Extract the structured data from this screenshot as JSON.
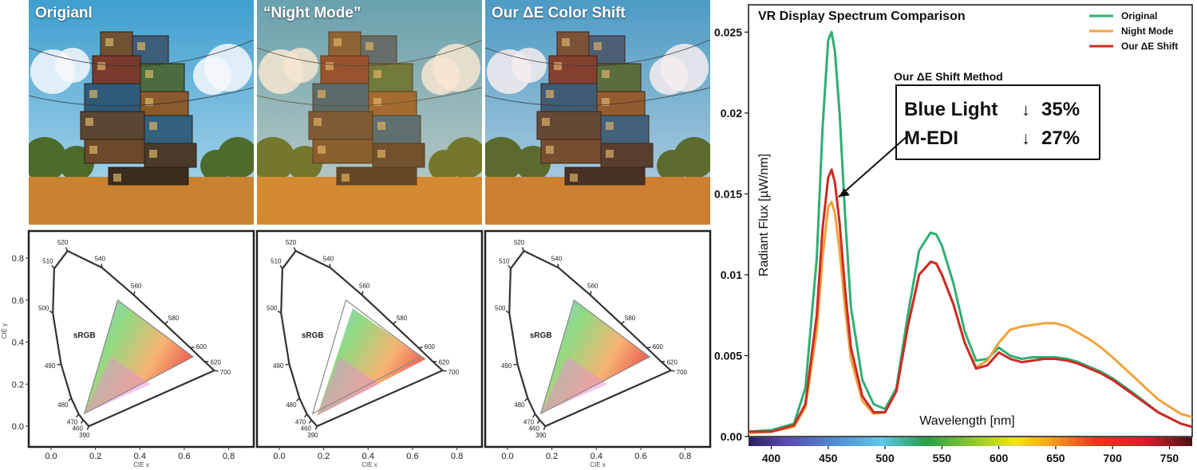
{
  "panels": [
    {
      "label": "Origianl",
      "variant": "original"
    },
    {
      "label": "“Night Mode”",
      "variant": "night"
    },
    {
      "label": "Our ΔE Color Shift",
      "variant": "shift"
    }
  ],
  "cie": {
    "xlabel": "CIE x",
    "ylabel": "CIE y",
    "x_ticks": [
      "0.0",
      "0.2",
      "0.4",
      "0.6",
      "0.8"
    ],
    "y_ticks": [
      "0.0",
      "0.2",
      "0.4",
      "0.6",
      "0.8"
    ],
    "gamut_label": "sRGB",
    "wavelength_labels": [
      "390",
      "460",
      "470",
      "480",
      "490",
      "500",
      "510",
      "520",
      "540",
      "560",
      "580",
      "600",
      "620",
      "700"
    ]
  },
  "chart_data": [
    {
      "type": "scatter",
      "title": "",
      "xlabel": "CIE x",
      "ylabel": "CIE y",
      "xlim": [
        -0.05,
        0.85
      ],
      "ylim": [
        -0.05,
        0.85
      ],
      "gamut": {
        "name": "sRGB",
        "red": [
          0.64,
          0.33
        ],
        "green": [
          0.3,
          0.6
        ],
        "blue": [
          0.15,
          0.06
        ]
      },
      "spectral_locus": [
        {
          "nm": "390",
          "x": 0.17,
          "y": 0.0
        },
        {
          "nm": "460",
          "x": 0.144,
          "y": 0.03
        },
        {
          "nm": "470",
          "x": 0.124,
          "y": 0.058
        },
        {
          "nm": "480",
          "x": 0.091,
          "y": 0.133
        },
        {
          "nm": "490",
          "x": 0.045,
          "y": 0.295
        },
        {
          "nm": "500",
          "x": 0.008,
          "y": 0.538
        },
        {
          "nm": "510",
          "x": 0.014,
          "y": 0.75
        },
        {
          "nm": "520",
          "x": 0.074,
          "y": 0.834
        },
        {
          "nm": "540",
          "x": 0.23,
          "y": 0.754
        },
        {
          "nm": "560",
          "x": 0.373,
          "y": 0.624
        },
        {
          "nm": "580",
          "x": 0.512,
          "y": 0.487
        },
        {
          "nm": "600",
          "x": 0.627,
          "y": 0.373
        },
        {
          "nm": "620",
          "x": 0.691,
          "y": 0.308
        },
        {
          "nm": "700",
          "x": 0.735,
          "y": 0.265
        }
      ]
    },
    {
      "type": "line",
      "title": "VR Display Spectrum Comparison",
      "xlabel": "Wavelength [nm]",
      "ylabel": "Radiant Flux [µW/nm]",
      "xlim": [
        380,
        770
      ],
      "ylim": [
        0,
        0.026
      ],
      "x_ticks": [
        400,
        450,
        500,
        550,
        600,
        650,
        700,
        750
      ],
      "y_ticks": [
        0.0,
        0.005,
        0.01,
        0.015,
        0.02,
        0.025
      ],
      "y_tick_labels": [
        "0.00",
        "0.005",
        "0.01",
        "0.015",
        "0.02",
        "0.025"
      ],
      "legend_position": "top-right",
      "x": [
        380,
        400,
        420,
        430,
        440,
        445,
        450,
        453,
        456,
        460,
        465,
        470,
        480,
        490,
        500,
        510,
        520,
        530,
        540,
        545,
        550,
        560,
        570,
        580,
        590,
        600,
        610,
        620,
        630,
        640,
        650,
        660,
        670,
        680,
        690,
        700,
        720,
        740,
        760,
        770
      ],
      "series": [
        {
          "name": "Original",
          "color": "#2fae73",
          "values": [
            0.0003,
            0.0004,
            0.0008,
            0.003,
            0.011,
            0.019,
            0.0245,
            0.025,
            0.0238,
            0.02,
            0.0135,
            0.008,
            0.0035,
            0.002,
            0.0017,
            0.003,
            0.0075,
            0.0115,
            0.0126,
            0.0125,
            0.0118,
            0.0095,
            0.0065,
            0.0047,
            0.0048,
            0.0055,
            0.005,
            0.0048,
            0.0049,
            0.0049,
            0.0049,
            0.0048,
            0.0046,
            0.0043,
            0.004,
            0.0036,
            0.0026,
            0.0015,
            0.0008,
            0.0006
          ]
        },
        {
          "name": "Night Mode",
          "color": "#f2a33a",
          "values": [
            0.0002,
            0.0003,
            0.0006,
            0.0018,
            0.0065,
            0.011,
            0.0142,
            0.0145,
            0.0138,
            0.0115,
            0.0078,
            0.0048,
            0.0022,
            0.0014,
            0.0015,
            0.0028,
            0.0068,
            0.01,
            0.0108,
            0.0107,
            0.01,
            0.0082,
            0.0058,
            0.0043,
            0.0047,
            0.0058,
            0.0066,
            0.0068,
            0.0069,
            0.007,
            0.007,
            0.0068,
            0.0064,
            0.006,
            0.0055,
            0.0049,
            0.0036,
            0.0023,
            0.0014,
            0.0012
          ]
        },
        {
          "name": "Our ΔE Shift",
          "color": "#cc2a26",
          "values": [
            0.0003,
            0.0003,
            0.0007,
            0.002,
            0.0075,
            0.0128,
            0.016,
            0.0165,
            0.0157,
            0.0132,
            0.009,
            0.0055,
            0.0025,
            0.0015,
            0.0015,
            0.0028,
            0.0068,
            0.01,
            0.0108,
            0.0107,
            0.01,
            0.0082,
            0.0058,
            0.0042,
            0.0044,
            0.0052,
            0.0048,
            0.0046,
            0.0047,
            0.0048,
            0.0048,
            0.0047,
            0.0045,
            0.0042,
            0.0039,
            0.0035,
            0.0025,
            0.0015,
            0.0008,
            0.0006
          ]
        }
      ],
      "annotation": {
        "title": "Our ΔE Shift Method",
        "rows": [
          {
            "label": "Blue Light",
            "arrow": "↓",
            "value": "35%"
          },
          {
            "label": "M-EDI",
            "arrow": "↓",
            "value": "27%"
          }
        ],
        "points_to": {
          "x": 455,
          "y": 0.0155
        }
      }
    }
  ],
  "colors": {
    "sky_top": "#3f9fcf",
    "sky_bottom": "#b6dcee",
    "ground": "#c9822f",
    "frame": "#222222"
  }
}
